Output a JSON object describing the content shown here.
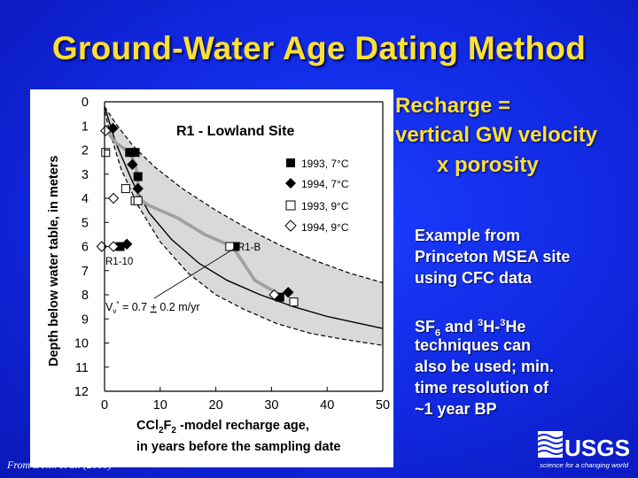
{
  "slide": {
    "title": "Ground-Water Age Dating Method",
    "recharge_line1": "Recharge =",
    "recharge_line2": "vertical GW velocity",
    "recharge_line3": "x  porosity",
    "example_line1": "Example from",
    "example_line2": "Princeton MSEA site",
    "example_line3": "using CFC data",
    "sf6_prefix": "SF",
    "sf6_sub": "6",
    "sf6_and": " and ",
    "h3_sup": "3",
    "h3_mid": "H-",
    "he3_sup": "3",
    "he_text": "He",
    "sf6_line2": "techniques can",
    "sf6_line3": "also be used; min.",
    "sf6_line4": "time resolution of",
    "sf6_line5": "~1 year BP",
    "citation": "From Delin et al. (2000)",
    "logo_text": "USGS",
    "logo_tagline": "science for a changing world"
  },
  "colors": {
    "title_yellow": "#ffe033",
    "background_blue": "#1128e0"
  },
  "chart_data": {
    "type": "scatter",
    "title": "R1 - Lowland Site",
    "ylabel": "Depth below water table, in meters",
    "xlabel_line1_pre": "CCl",
    "xlabel_sub1": "2",
    "xlabel_F": "F",
    "xlabel_sub2": "2",
    "xlabel_line1_post": " -model recharge age,",
    "xlabel_line2": "in years before the sampling date",
    "xlim": [
      0,
      50
    ],
    "ylim": [
      0,
      12
    ],
    "x_ticks": [
      0,
      10,
      20,
      30,
      40,
      50
    ],
    "y_ticks": [
      0,
      1,
      2,
      3,
      4,
      5,
      6,
      7,
      8,
      9,
      10,
      11,
      12
    ],
    "x_tick_labels": [
      "0",
      "10",
      "20",
      "30",
      "40",
      "50"
    ],
    "y_tick_labels": [
      "0",
      "1",
      "2",
      "3",
      "4",
      "5",
      "6",
      "7",
      "8",
      "9",
      "10",
      "11",
      "12"
    ],
    "series": [
      {
        "name": "1993, 7°C",
        "marker": "square-filled",
        "points": [
          [
            4.5,
            2.1
          ],
          [
            5.5,
            2.1
          ],
          [
            6,
            3.1
          ],
          [
            2.8,
            6.0
          ],
          [
            23.5,
            6.0
          ],
          [
            31.5,
            8.1
          ]
        ]
      },
      {
        "name": "1994, 7°C",
        "marker": "diamond-filled",
        "points": [
          [
            1.5,
            1.1
          ],
          [
            5,
            2.6
          ],
          [
            6,
            3.6
          ],
          [
            4,
            5.9
          ],
          [
            33,
            7.9
          ]
        ]
      },
      {
        "name": "1993, 9°C",
        "marker": "square-open",
        "points": [
          [
            0.2,
            2.1
          ],
          [
            3.8,
            3.6
          ],
          [
            5.5,
            4.1
          ],
          [
            6,
            4.1
          ],
          [
            22.5,
            6.0
          ],
          [
            34,
            8.3
          ]
        ]
      },
      {
        "name": "1994, 9°C",
        "marker": "diamond-open",
        "points": [
          [
            0.2,
            1.2
          ],
          [
            1.6,
            6.0
          ],
          [
            -0.5,
            6.0
          ],
          [
            1.6,
            4.0
          ],
          [
            30.5,
            8.0
          ]
        ]
      }
    ],
    "curves": {
      "central": [
        [
          0,
          0.2
        ],
        [
          2,
          1.7
        ],
        [
          5,
          3.3
        ],
        [
          8,
          4.6
        ],
        [
          12,
          5.7
        ],
        [
          17,
          6.7
        ],
        [
          22,
          7.4
        ],
        [
          28,
          8.0
        ],
        [
          34,
          8.5
        ],
        [
          40,
          8.9
        ],
        [
          45,
          9.15
        ],
        [
          50,
          9.4
        ]
      ],
      "lower_bound": [
        [
          0,
          0.4
        ],
        [
          1,
          1.3
        ],
        [
          3,
          2.8
        ],
        [
          6,
          4.3
        ],
        [
          10,
          5.8
        ],
        [
          15,
          7.1
        ],
        [
          20,
          8.0
        ],
        [
          25,
          8.6
        ],
        [
          31,
          9.2
        ],
        [
          37,
          9.6
        ],
        [
          43,
          9.85
        ],
        [
          50,
          10.1
        ]
      ],
      "upper_bound": [
        [
          0,
          0.2
        ],
        [
          2,
          0.9
        ],
        [
          5,
          1.8
        ],
        [
          9,
          2.7
        ],
        [
          14,
          3.6
        ],
        [
          20,
          4.5
        ],
        [
          26,
          5.3
        ],
        [
          32,
          6.0
        ],
        [
          38,
          6.6
        ],
        [
          44,
          7.1
        ],
        [
          50,
          7.5
        ]
      ]
    },
    "profile_lines": [
      {
        "name": "R1-10",
        "points": [
          [
            0,
            1.1
          ],
          [
            2,
            1.7
          ],
          [
            4.5,
            2.1
          ],
          [
            5.5,
            2.6
          ],
          [
            6,
            3.1
          ],
          [
            6,
            4.0
          ],
          [
            8,
            4.3
          ],
          [
            13,
            4.8
          ],
          [
            18,
            5.5
          ],
          [
            23,
            6.0
          ],
          [
            27,
            7.4
          ],
          [
            31.5,
            8.0
          ]
        ]
      },
      {
        "name": "R1-B",
        "points": [
          [
            0,
            1.1
          ],
          [
            2,
            1.7
          ],
          [
            4.5,
            2.1
          ],
          [
            5.5,
            2.6
          ],
          [
            6,
            3.1
          ],
          [
            6,
            4.0
          ],
          [
            8,
            4.3
          ],
          [
            13,
            4.8
          ],
          [
            18,
            5.5
          ],
          [
            23,
            6.0
          ],
          [
            27,
            7.4
          ],
          [
            31.5,
            8.0
          ]
        ]
      }
    ],
    "annotations": [
      {
        "text": "R1-B",
        "x": 24.2,
        "y": 6.0
      },
      {
        "text": "R1-10",
        "x": 0.2,
        "y": 6.7
      }
    ],
    "velocity_label_V": "V",
    "velocity_label_sub": "v",
    "velocity_label_sup": "*",
    "velocity_label_rest": " = 0.7 ",
    "velocity_label_pm": "+",
    "velocity_label_unit": " 0.2 m/yr",
    "legend_position": "upper-right"
  }
}
